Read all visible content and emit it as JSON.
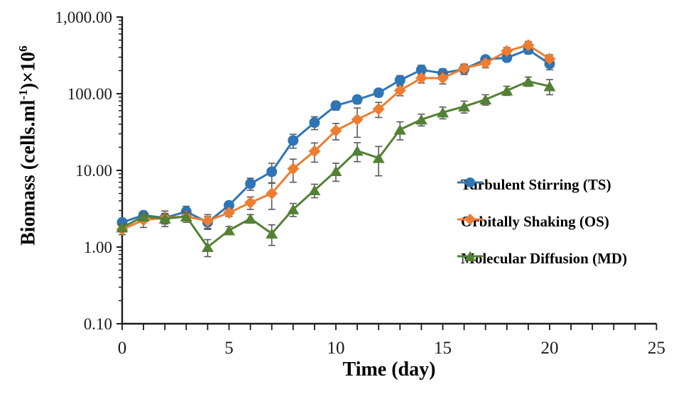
{
  "chart_data": {
    "type": "line",
    "title": "",
    "xlabel": "Time (day)",
    "ylabel": "Biomass (cells.ml⁻¹)×10⁶",
    "ylabel_parts": [
      {
        "t": "Biomass (cells.ml",
        "sup": false
      },
      {
        "t": "-1",
        "sup": true
      },
      {
        "t": ")×10",
        "sup": false
      },
      {
        "t": "6",
        "sup": true
      }
    ],
    "x": [
      0,
      1,
      2,
      3,
      4,
      5,
      6,
      7,
      8,
      9,
      10,
      11,
      12,
      13,
      14,
      15,
      16,
      17,
      18,
      19,
      20
    ],
    "series": [
      {
        "name": "Turbulent Stirring (TS)",
        "marker": "circle",
        "color": "#2E75B6",
        "values": [
          2.1,
          2.6,
          2.4,
          2.9,
          2.1,
          3.5,
          6.7,
          9.6,
          24.5,
          42,
          70,
          84,
          103,
          150,
          205,
          185,
          210,
          280,
          295,
          375,
          245
        ],
        "errors": [
          0.25,
          0.3,
          0.55,
          0.5,
          0.4,
          0.35,
          1.2,
          2.8,
          5,
          8,
          9,
          10,
          12,
          22,
          30,
          26,
          32,
          28,
          32,
          45,
          40
        ]
      },
      {
        "name": "Orbitally Shaking (OS)",
        "marker": "diamond",
        "color": "#ED7D31",
        "values": [
          1.7,
          2.25,
          2.4,
          2.5,
          2.2,
          2.8,
          3.8,
          5.0,
          10.5,
          17.8,
          33,
          46,
          63,
          110,
          160,
          160,
          215,
          250,
          360,
          430,
          285
        ],
        "errors": [
          0.25,
          0.45,
          0.35,
          0.4,
          0.45,
          0.3,
          0.7,
          1.9,
          3.5,
          5,
          8,
          19,
          14,
          16,
          22,
          26,
          28,
          32,
          40,
          50,
          36
        ]
      },
      {
        "name": "Molecular Diffusion (MD)",
        "marker": "triangle",
        "color": "#538135",
        "values": [
          1.8,
          2.5,
          2.35,
          2.5,
          1.0,
          1.65,
          2.35,
          1.5,
          3.1,
          5.5,
          9.8,
          18,
          14.5,
          34,
          46,
          57,
          68,
          84,
          110,
          145,
          125
        ],
        "errors": [
          0.18,
          0.22,
          0.35,
          0.3,
          0.25,
          0.2,
          0.3,
          0.45,
          0.6,
          1.1,
          2.6,
          5,
          6,
          9,
          8,
          10,
          12,
          13,
          15,
          20,
          28
        ]
      }
    ],
    "y_axis": {
      "scale": "log",
      "range": [
        0.1,
        1000
      ],
      "ticks": [
        {
          "v": 1000,
          "label": "1,000.00"
        },
        {
          "v": 100,
          "label": "100.00"
        },
        {
          "v": 10,
          "label": "10.00"
        },
        {
          "v": 1,
          "label": "1.00"
        },
        {
          "v": 0.1,
          "label": "0.10"
        }
      ]
    },
    "x_axis": {
      "range": [
        0,
        25
      ],
      "major_ticks": [
        0,
        5,
        10,
        15,
        20,
        25
      ],
      "minor_tick_every": 1
    },
    "legend_position": "middle-right",
    "grid": false,
    "colors": {
      "axis": "#1a1a1a",
      "error_bar": "#595959",
      "text": "#1a1a1a"
    }
  }
}
